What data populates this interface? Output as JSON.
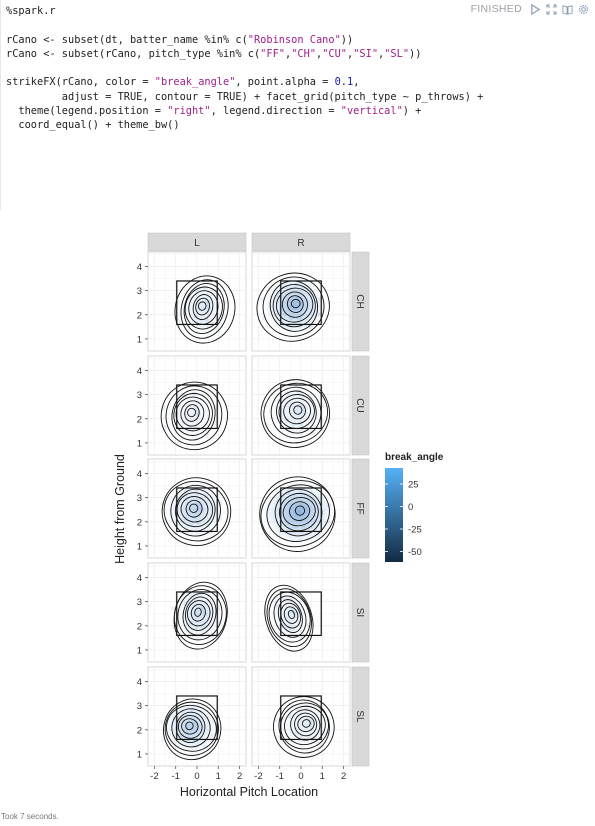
{
  "paragraph": {
    "title": "%spark.r",
    "status": "FINISHED",
    "code_lines": [
      [
        {
          "t": "%spark.r",
          "c": "kw"
        }
      ],
      [],
      [
        {
          "t": "rCano <- subset(dt, batter_name %in% c(",
          "c": "kw"
        },
        {
          "t": "\"Robinson Cano\"",
          "c": "str"
        },
        {
          "t": "))",
          "c": "kw"
        }
      ],
      [
        {
          "t": "rCano <- subset(rCano, pitch_type %in% c(",
          "c": "kw"
        },
        {
          "t": "\"FF\"",
          "c": "str"
        },
        {
          "t": ",",
          "c": "kw"
        },
        {
          "t": "\"CH\"",
          "c": "str"
        },
        {
          "t": ",",
          "c": "kw"
        },
        {
          "t": "\"CU\"",
          "c": "str"
        },
        {
          "t": ",",
          "c": "kw"
        },
        {
          "t": "\"SI\"",
          "c": "str"
        },
        {
          "t": ",",
          "c": "kw"
        },
        {
          "t": "\"SL\"",
          "c": "str"
        },
        {
          "t": "))",
          "c": "kw"
        }
      ],
      [],
      [
        {
          "t": "strikeFX(rCano, color = ",
          "c": "kw"
        },
        {
          "t": "\"break_angle\"",
          "c": "str"
        },
        {
          "t": ", point.alpha = ",
          "c": "kw"
        },
        {
          "t": "0.1",
          "c": "num"
        },
        {
          "t": ",",
          "c": "kw"
        }
      ],
      [
        {
          "t": "         adjust = TRUE, contour = TRUE) + facet_grid(pitch_type ~ p_throws) +",
          "c": "kw"
        }
      ],
      [
        {
          "t": "  theme(legend.position = ",
          "c": "kw"
        },
        {
          "t": "\"right\"",
          "c": "str"
        },
        {
          "t": ", legend.direction = ",
          "c": "kw"
        },
        {
          "t": "\"vertical\"",
          "c": "str"
        },
        {
          "t": ") +",
          "c": "kw"
        }
      ],
      [
        {
          "t": "  coord_equal() + theme_bw()",
          "c": "kw"
        }
      ]
    ],
    "took": "Took 7 seconds.",
    "controls": [
      "run-icon",
      "expand-icon",
      "book-icon",
      "gear-icon"
    ]
  },
  "chart_data": {
    "type": "scatter",
    "subtype": "faceted density contour",
    "xlabel": "Horizontal Pitch Location",
    "ylabel": "Height from Ground",
    "x_ticks": [
      "-2",
      "-1",
      "0",
      "1",
      "2"
    ],
    "y_ticks": [
      "1",
      "2",
      "3",
      "4"
    ],
    "xlim": [
      -2.3,
      2.3
    ],
    "ylim": [
      0.5,
      4.6
    ],
    "columns": [
      "L",
      "R"
    ],
    "rows": [
      "CH",
      "CU",
      "FF",
      "SI",
      "SL"
    ],
    "strike_zone": {
      "x": [
        -0.95,
        0.95
      ],
      "y": [
        1.6,
        3.4
      ]
    },
    "legend": {
      "title": "break_angle",
      "ticks": [
        "25",
        "0",
        "-25",
        "-50"
      ],
      "position": "right",
      "colors": [
        "#56b1f7",
        "#132b43"
      ]
    },
    "panel_background": "#ffffff",
    "strip_color": "#d9d9d9",
    "grid": true
  }
}
